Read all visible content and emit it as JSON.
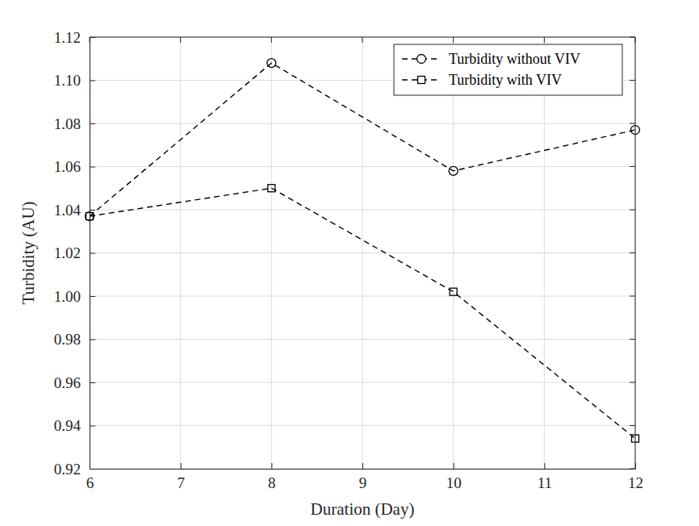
{
  "chart_data": {
    "type": "line",
    "x_label": "Duration (Day)",
    "y_label": "Turbidity (AU)",
    "x": [
      6,
      8,
      10,
      12
    ],
    "series": [
      {
        "name": "Turbidity without VIV",
        "color": "#000000",
        "marker": "circle",
        "line_style": "dashed",
        "values": [
          1.037,
          1.108,
          1.058,
          1.077
        ]
      },
      {
        "name": "Turbidity with VIV",
        "color": "#000000",
        "marker": "square",
        "line_style": "dashed",
        "values": [
          1.037,
          1.05,
          1.002,
          0.934
        ]
      }
    ],
    "xlim": [
      6,
      12
    ],
    "xticks": [
      6,
      7,
      8,
      9,
      10,
      11,
      12
    ],
    "ylim": [
      0.92,
      1.12
    ],
    "yticks": [
      0.92,
      0.94,
      0.96,
      0.98,
      {
        "value": 1,
        "label": "1.00"
      },
      1.02,
      1.04,
      1.06,
      1.08,
      {
        "value": 1.1,
        "label": "1.10"
      },
      1.12
    ],
    "grid": true,
    "legend": "northeast"
  }
}
